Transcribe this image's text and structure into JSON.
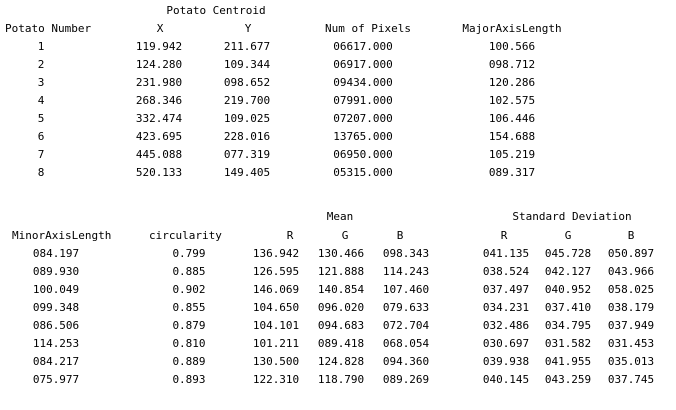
{
  "table1": {
    "group_header": "Potato Centroid",
    "headers": [
      "Potato Number",
      "X",
      "Y",
      "Num of Pixels",
      "MajorAxisLength"
    ],
    "rows": [
      [
        "1",
        "119.942",
        "211.677",
        "06617.000",
        "100.566"
      ],
      [
        "2",
        "124.280",
        "109.344",
        "06917.000",
        "098.712"
      ],
      [
        "3",
        "231.980",
        "098.652",
        "09434.000",
        "120.286"
      ],
      [
        "4",
        "268.346",
        "219.700",
        "07991.000",
        "102.575"
      ],
      [
        "5",
        "332.474",
        "109.025",
        "07207.000",
        "106.446"
      ],
      [
        "6",
        "423.695",
        "228.016",
        "13765.000",
        "154.688"
      ],
      [
        "7",
        "445.088",
        "077.319",
        "06950.000",
        "105.219"
      ],
      [
        "8",
        "520.133",
        "149.405",
        "05315.000",
        "089.317"
      ]
    ]
  },
  "table2": {
    "group_mean": "Mean",
    "group_std": "Standard Deviation",
    "headers": [
      "MinorAxisLength",
      "circularity",
      "R",
      "G",
      "B",
      "R",
      "G",
      "B"
    ],
    "rows": [
      [
        "084.197",
        "0.799",
        "136.942",
        "130.466",
        "098.343",
        "041.135",
        "045.728",
        "050.897"
      ],
      [
        "089.930",
        "0.885",
        "126.595",
        "121.888",
        "114.243",
        "038.524",
        "042.127",
        "043.966"
      ],
      [
        "100.049",
        "0.902",
        "146.069",
        "140.854",
        "107.460",
        "037.497",
        "040.952",
        "058.025"
      ],
      [
        "099.348",
        "0.855",
        "104.650",
        "096.020",
        "079.633",
        "034.231",
        "037.410",
        "038.179"
      ],
      [
        "086.506",
        "0.879",
        "104.101",
        "094.683",
        "072.704",
        "032.486",
        "034.795",
        "037.949"
      ],
      [
        "114.253",
        "0.810",
        "101.211",
        "089.418",
        "068.054",
        "030.697",
        "031.582",
        "031.453"
      ],
      [
        "084.217",
        "0.889",
        "130.500",
        "124.828",
        "094.360",
        "039.938",
        "041.955",
        "035.013"
      ],
      [
        "075.977",
        "0.893",
        "122.310",
        "118.790",
        "089.269",
        "040.145",
        "043.259",
        "037.745"
      ]
    ]
  }
}
